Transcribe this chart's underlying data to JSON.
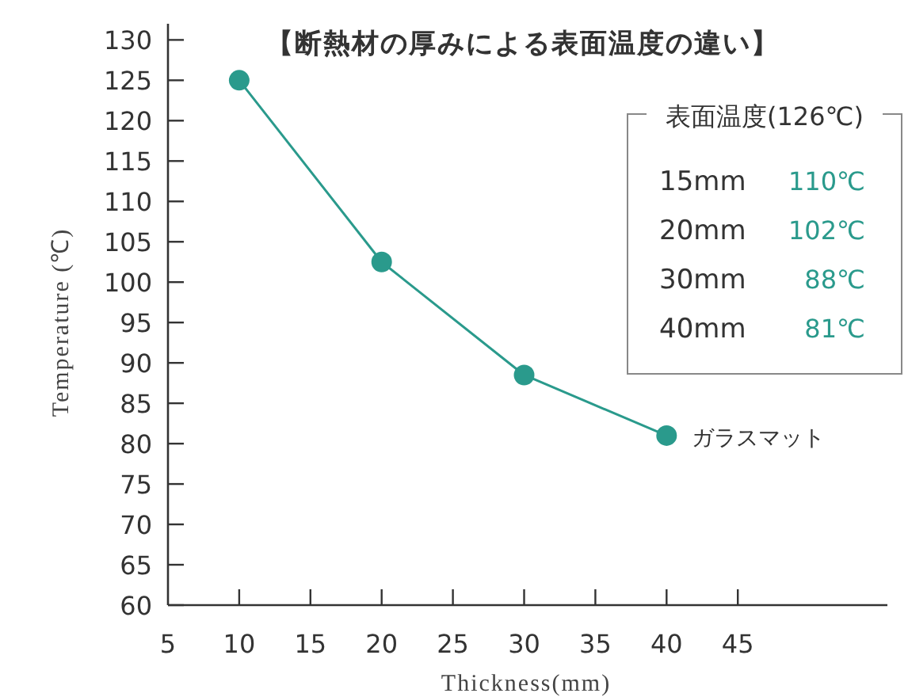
{
  "chart_data": {
    "type": "line",
    "title": "【断熱材の厚みによる表面温度の違い】",
    "xlabel": "Thickness(mm)",
    "ylabel": "Temperature (℃)",
    "x": [
      10,
      20,
      30,
      40
    ],
    "series": [
      {
        "name": "ガラスマット",
        "color": "#2a9a8c",
        "values": [
          125,
          102.5,
          88.5,
          81
        ]
      }
    ],
    "xlim": [
      5,
      55.5
    ],
    "xticks": [
      5,
      10,
      15,
      20,
      25,
      30,
      35,
      40,
      45
    ],
    "ylim": [
      60,
      132
    ],
    "yticks": [
      60,
      65,
      70,
      75,
      80,
      85,
      90,
      95,
      100,
      105,
      110,
      115,
      120,
      125,
      130
    ],
    "annotations": [
      "表面温度(126℃)",
      "15mm",
      "110℃",
      "20mm",
      "102℃",
      "30mm",
      "88℃",
      "40mm",
      "81℃"
    ],
    "marker": "circle",
    "line_style": "solid",
    "grid": false,
    "legend": false
  }
}
